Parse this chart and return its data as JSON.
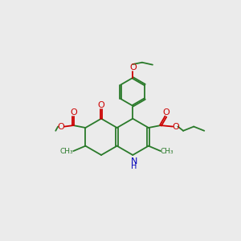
{
  "bg_color": "#ebebeb",
  "bond_color": "#2a7a2a",
  "o_color": "#cc0000",
  "n_color": "#0000bb",
  "lw": 1.3,
  "figsize": [
    3.0,
    3.0
  ],
  "dpi": 100,
  "xlim": [
    -4.5,
    4.8
  ],
  "ylim": [
    -3.8,
    5.2
  ],
  "ring_r": 0.78,
  "ph_r": 0.6
}
